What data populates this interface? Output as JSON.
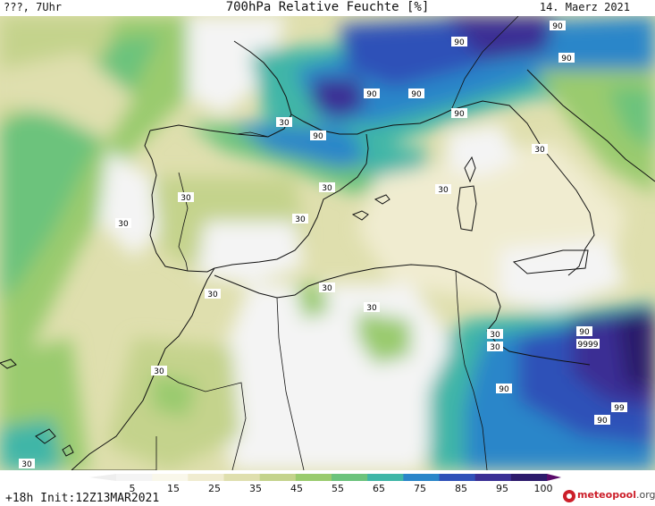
{
  "header": {
    "left_text": "???, 7Uhr",
    "title": "700hPa Relative Feuchte [%]",
    "date": "14. Maerz 2021"
  },
  "footer": {
    "run_info": "+18h Init:12Z13MAR2021",
    "logo_text": "meteo",
    "logo_text2": "pool",
    "logo_suffix": ".org"
  },
  "legend": {
    "ticks": [
      "5",
      "15",
      "25",
      "35",
      "45",
      "55",
      "65",
      "75",
      "85",
      "95",
      "100"
    ],
    "colors": [
      "#f4f4f4",
      "#f9f7ea",
      "#f0ecd0",
      "#dfdfae",
      "#c4d38c",
      "#9acb6e",
      "#6cc37c",
      "#3fb6a7",
      "#2a86c9",
      "#2f51b8",
      "#3a2f94",
      "#2c1a6b"
    ]
  },
  "map_labels": [
    {
      "text": "90"
    },
    {
      "text": "90"
    },
    {
      "text": "90"
    },
    {
      "text": "90"
    },
    {
      "text": "90"
    },
    {
      "text": "90"
    },
    {
      "text": "30"
    },
    {
      "text": "90"
    },
    {
      "text": "30"
    },
    {
      "text": "30"
    },
    {
      "text": "30"
    },
    {
      "text": "30"
    },
    {
      "text": "30"
    },
    {
      "text": "30"
    },
    {
      "text": "30"
    },
    {
      "text": "30"
    },
    {
      "text": "30"
    },
    {
      "text": "30"
    },
    {
      "text": "30"
    },
    {
      "text": "30"
    },
    {
      "text": "90"
    },
    {
      "text": "9999"
    },
    {
      "text": "90"
    },
    {
      "text": "99"
    },
    {
      "text": "90"
    },
    {
      "text": "30"
    },
    {
      "text": "30"
    }
  ]
}
